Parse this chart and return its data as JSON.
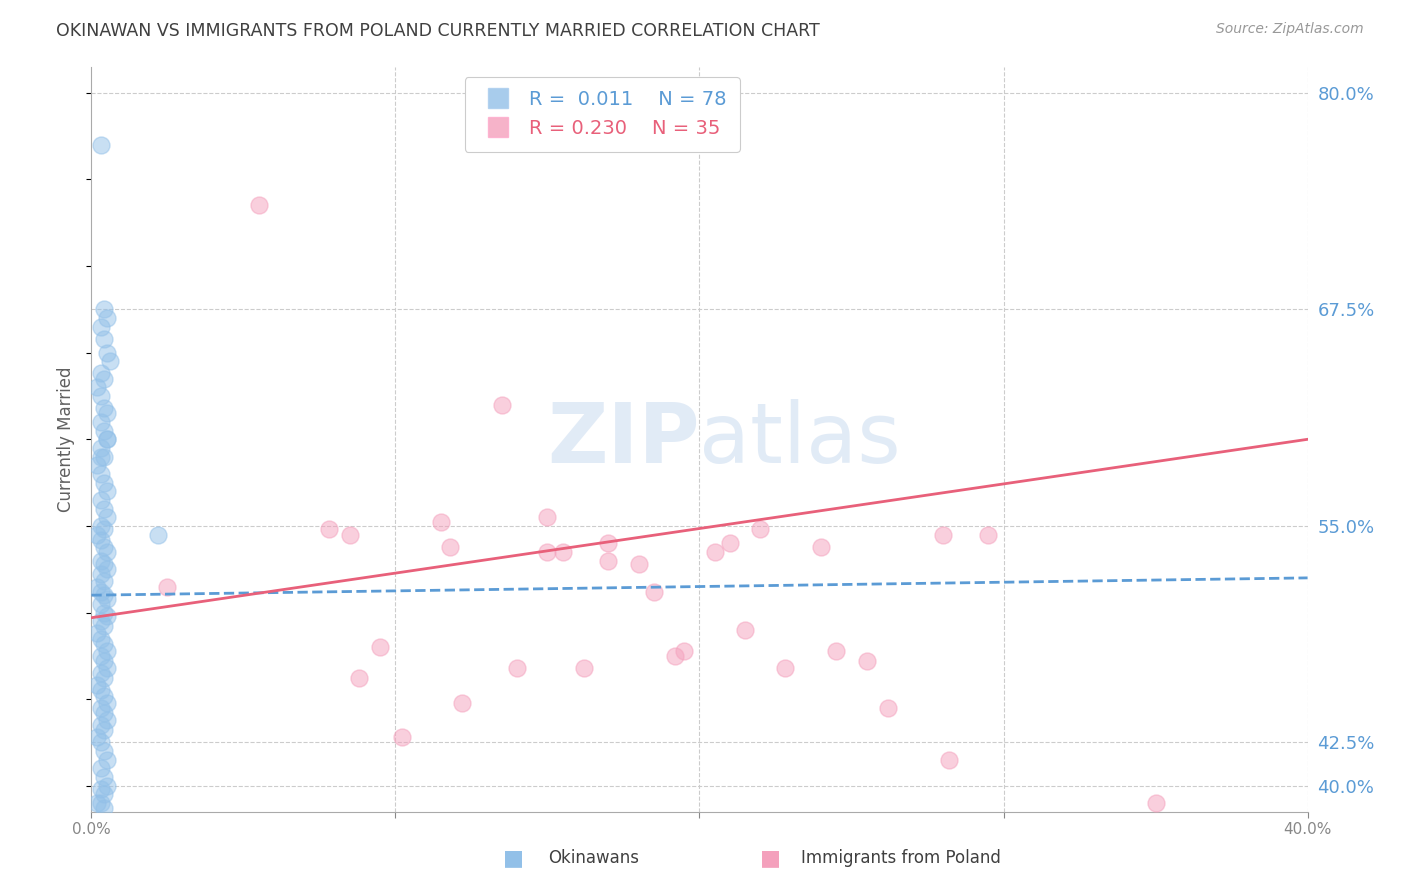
{
  "title": "OKINAWAN VS IMMIGRANTS FROM POLAND CURRENTLY MARRIED CORRELATION CHART",
  "source": "Source: ZipAtlas.com",
  "ylabel": "Currently Married",
  "xlim": [
    0.0,
    0.4
  ],
  "ylim": [
    0.385,
    0.815
  ],
  "yticks": [
    0.4,
    0.425,
    0.55,
    0.675,
    0.8
  ],
  "ytick_labels": [
    "40.0%",
    "42.5%",
    "55.0%",
    "67.5%",
    "80.0%"
  ],
  "xticks": [
    0.0,
    0.1,
    0.2,
    0.3,
    0.4
  ],
  "xtick_labels": [
    "0.0%",
    "",
    "",
    "",
    "40.0%"
  ],
  "watermark": "ZIPatlas",
  "legend_blue_r": "0.011",
  "legend_blue_n": "78",
  "legend_pink_r": "0.230",
  "legend_pink_n": "35",
  "blue_color": "#92C0E8",
  "pink_color": "#F4A0BC",
  "blue_line_color": "#5B9BD5",
  "pink_line_color": "#E8607A",
  "title_color": "#404040",
  "axis_label_color": "#5B9BD5",
  "background_color": "#FFFFFF",
  "blue_scatter_x": [
    0.003,
    0.004,
    0.005,
    0.003,
    0.004,
    0.005,
    0.006,
    0.003,
    0.004,
    0.002,
    0.003,
    0.004,
    0.005,
    0.003,
    0.004,
    0.005,
    0.003,
    0.004,
    0.002,
    0.003,
    0.004,
    0.005,
    0.003,
    0.004,
    0.005,
    0.003,
    0.004,
    0.002,
    0.003,
    0.004,
    0.005,
    0.003,
    0.004,
    0.005,
    0.003,
    0.004,
    0.002,
    0.003,
    0.004,
    0.005,
    0.003,
    0.004,
    0.005,
    0.003,
    0.004,
    0.002,
    0.003,
    0.004,
    0.005,
    0.003,
    0.004,
    0.005,
    0.003,
    0.004,
    0.002,
    0.003,
    0.004,
    0.005,
    0.003,
    0.004,
    0.005,
    0.003,
    0.004,
    0.002,
    0.003,
    0.022,
    0.004,
    0.005,
    0.003,
    0.004,
    0.005,
    0.003,
    0.004,
    0.002,
    0.003,
    0.004,
    0.005,
    0.003
  ],
  "blue_scatter_y": [
    0.77,
    0.675,
    0.67,
    0.665,
    0.658,
    0.65,
    0.645,
    0.638,
    0.635,
    0.63,
    0.625,
    0.618,
    0.615,
    0.61,
    0.605,
    0.6,
    0.595,
    0.59,
    0.585,
    0.58,
    0.575,
    0.57,
    0.565,
    0.56,
    0.555,
    0.55,
    0.548,
    0.545,
    0.542,
    0.538,
    0.535,
    0.53,
    0.528,
    0.525,
    0.522,
    0.518,
    0.515,
    0.512,
    0.51,
    0.508,
    0.505,
    0.5,
    0.498,
    0.495,
    0.492,
    0.488,
    0.485,
    0.482,
    0.478,
    0.475,
    0.472,
    0.468,
    0.465,
    0.462,
    0.458,
    0.455,
    0.452,
    0.448,
    0.445,
    0.442,
    0.438,
    0.435,
    0.432,
    0.428,
    0.425,
    0.545,
    0.42,
    0.415,
    0.41,
    0.405,
    0.4,
    0.398,
    0.395,
    0.39,
    0.39,
    0.387,
    0.6,
    0.59
  ],
  "pink_scatter_x": [
    0.055,
    0.28,
    0.295,
    0.135,
    0.17,
    0.17,
    0.115,
    0.085,
    0.15,
    0.18,
    0.205,
    0.21,
    0.24,
    0.185,
    0.215,
    0.245,
    0.15,
    0.095,
    0.118,
    0.14,
    0.078,
    0.155,
    0.195,
    0.22,
    0.255,
    0.088,
    0.122,
    0.162,
    0.192,
    0.228,
    0.262,
    0.102,
    0.282,
    0.35,
    0.025
  ],
  "pink_scatter_y": [
    0.735,
    0.545,
    0.545,
    0.62,
    0.54,
    0.53,
    0.552,
    0.545,
    0.555,
    0.528,
    0.535,
    0.54,
    0.538,
    0.512,
    0.49,
    0.478,
    0.535,
    0.48,
    0.538,
    0.468,
    0.548,
    0.535,
    0.478,
    0.548,
    0.472,
    0.462,
    0.448,
    0.468,
    0.475,
    0.468,
    0.445,
    0.428,
    0.415,
    0.39,
    0.515
  ],
  "blue_trend_x": [
    0.0,
    0.4
  ],
  "blue_trend_y": [
    0.51,
    0.52
  ],
  "pink_trend_x": [
    0.0,
    0.4
  ],
  "pink_trend_y": [
    0.497,
    0.6
  ]
}
